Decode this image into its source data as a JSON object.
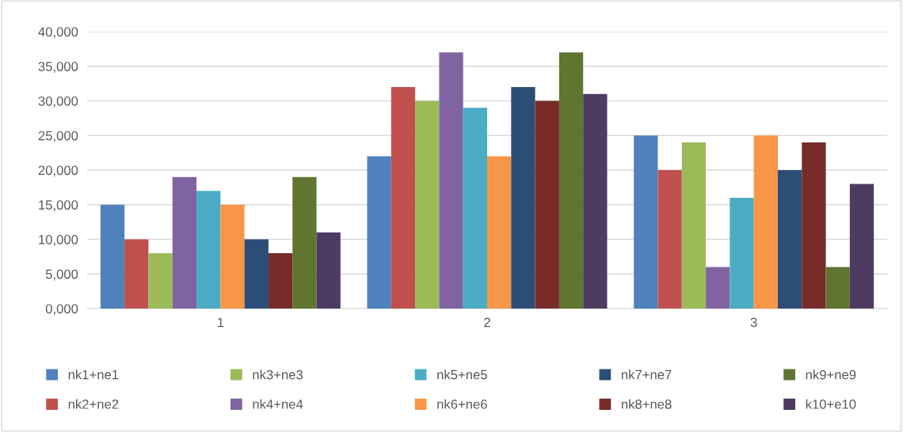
{
  "chart_data": {
    "type": "bar",
    "categories": [
      "1",
      "2",
      "3"
    ],
    "series": [
      {
        "name": "nk1+ne1",
        "color": "#4f81bd",
        "values": [
          15000,
          22000,
          25000
        ]
      },
      {
        "name": "nk2+ne2",
        "color": "#c0504d",
        "values": [
          10000,
          32000,
          20000
        ]
      },
      {
        "name": "nk3+ne3",
        "color": "#9bbb59",
        "values": [
          8000,
          30000,
          24000
        ]
      },
      {
        "name": "nk4+ne4",
        "color": "#8064a2",
        "values": [
          19000,
          37000,
          6000
        ]
      },
      {
        "name": "nk5+ne5",
        "color": "#4bacc6",
        "values": [
          17000,
          29000,
          16000
        ]
      },
      {
        "name": "nk6+ne6",
        "color": "#f79646",
        "values": [
          15000,
          22000,
          25000
        ]
      },
      {
        "name": "nk7+ne7",
        "color": "#2c4d75",
        "values": [
          10000,
          32000,
          20000
        ]
      },
      {
        "name": "nk8+ne8",
        "color": "#772c2a",
        "values": [
          8000,
          30000,
          24000
        ]
      },
      {
        "name": "nk9+ne9",
        "color": "#5f7530",
        "values": [
          19000,
          37000,
          6000
        ]
      },
      {
        "name": "k10+e10",
        "color": "#4d3b62",
        "values": [
          11000,
          31000,
          18000
        ]
      }
    ],
    "ylim": [
      0,
      40000
    ],
    "yticks": [
      {
        "value": 0,
        "label": "0,000"
      },
      {
        "value": 5000,
        "label": "5,000"
      },
      {
        "value": 10000,
        "label": "10,000"
      },
      {
        "value": 15000,
        "label": "15,000"
      },
      {
        "value": 20000,
        "label": "20,000"
      },
      {
        "value": 25000,
        "label": "25,000"
      },
      {
        "value": 30000,
        "label": "30,000"
      },
      {
        "value": 35000,
        "label": "35,000"
      },
      {
        "value": 40000,
        "label": "40,000"
      }
    ],
    "grid": "y",
    "legend": "bottom"
  }
}
